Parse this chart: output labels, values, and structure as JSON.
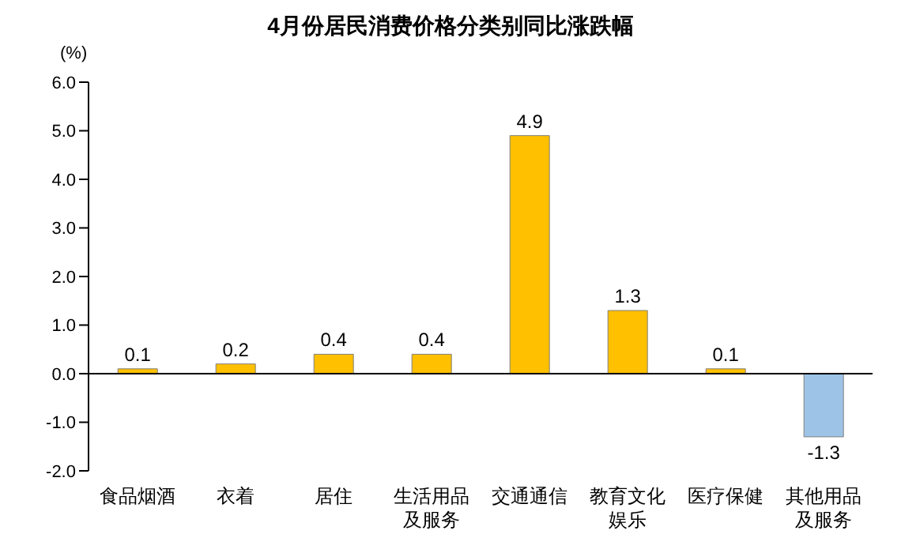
{
  "chart_data": {
    "type": "bar",
    "title": "4月份居民消费价格分类别同比涨跌幅",
    "ylabel": "(%)",
    "categories": [
      "食品烟酒",
      "衣着",
      "居住",
      "生活用品及服务",
      "交通通信",
      "教育文化娱乐",
      "医疗保健",
      "其他用品及服务"
    ],
    "values": [
      0.1,
      0.2,
      0.4,
      0.4,
      4.9,
      1.3,
      0.1,
      -1.3
    ],
    "colors": [
      "#ffc000",
      "#ffc000",
      "#ffc000",
      "#ffc000",
      "#ffc000",
      "#ffc000",
      "#ffc000",
      "#9dc3e6"
    ],
    "ylim": [
      -2,
      6
    ],
    "yticks": [
      {
        "value": -2,
        "label": "-2.0"
      },
      {
        "value": -1,
        "label": "-1.0"
      },
      {
        "value": 0,
        "label": "0.0"
      },
      {
        "value": 1,
        "label": "1.0"
      },
      {
        "value": 2,
        "label": "2.0"
      },
      {
        "value": 3,
        "label": "3.0"
      },
      {
        "value": 4,
        "label": "4.0"
      },
      {
        "value": 5,
        "label": "5.0"
      },
      {
        "value": 6,
        "label": "6.0"
      }
    ],
    "data_labels": true
  }
}
